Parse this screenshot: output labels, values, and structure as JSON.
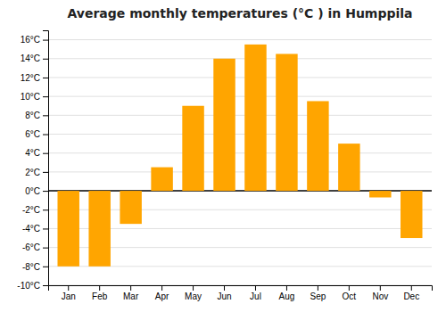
{
  "chart_data": {
    "type": "bar",
    "title": "Average monthly temperatures (°C ) in Humppila",
    "categories": [
      "Jan",
      "Feb",
      "Mar",
      "Apr",
      "May",
      "Jun",
      "Jul",
      "Aug",
      "Sep",
      "Oct",
      "Nov",
      "Dec"
    ],
    "values": [
      -8.0,
      -8.0,
      -3.5,
      2.5,
      9.0,
      14.0,
      15.5,
      14.5,
      9.5,
      5.0,
      -0.7,
      -5.0
    ],
    "color": "#FFA500",
    "ylim": [
      -10,
      17
    ],
    "yticks": [
      {
        "value": -10,
        "label": "-10°C"
      },
      {
        "value": -8,
        "label": "-8°C"
      },
      {
        "value": -6,
        "label": "-6°C"
      },
      {
        "value": -4,
        "label": "-4°C"
      },
      {
        "value": -2,
        "label": "-2°C"
      },
      {
        "value": 0,
        "label": "0°C"
      },
      {
        "value": 2,
        "label": "2°C"
      },
      {
        "value": 4,
        "label": "4°C"
      },
      {
        "value": 6,
        "label": "6°C"
      },
      {
        "value": 8,
        "label": "8°C"
      },
      {
        "value": 10,
        "label": "10°C"
      },
      {
        "value": 12,
        "label": "12°C"
      },
      {
        "value": 14,
        "label": "14°C"
      },
      {
        "value": 16,
        "label": "16°C"
      }
    ],
    "grid": true
  }
}
